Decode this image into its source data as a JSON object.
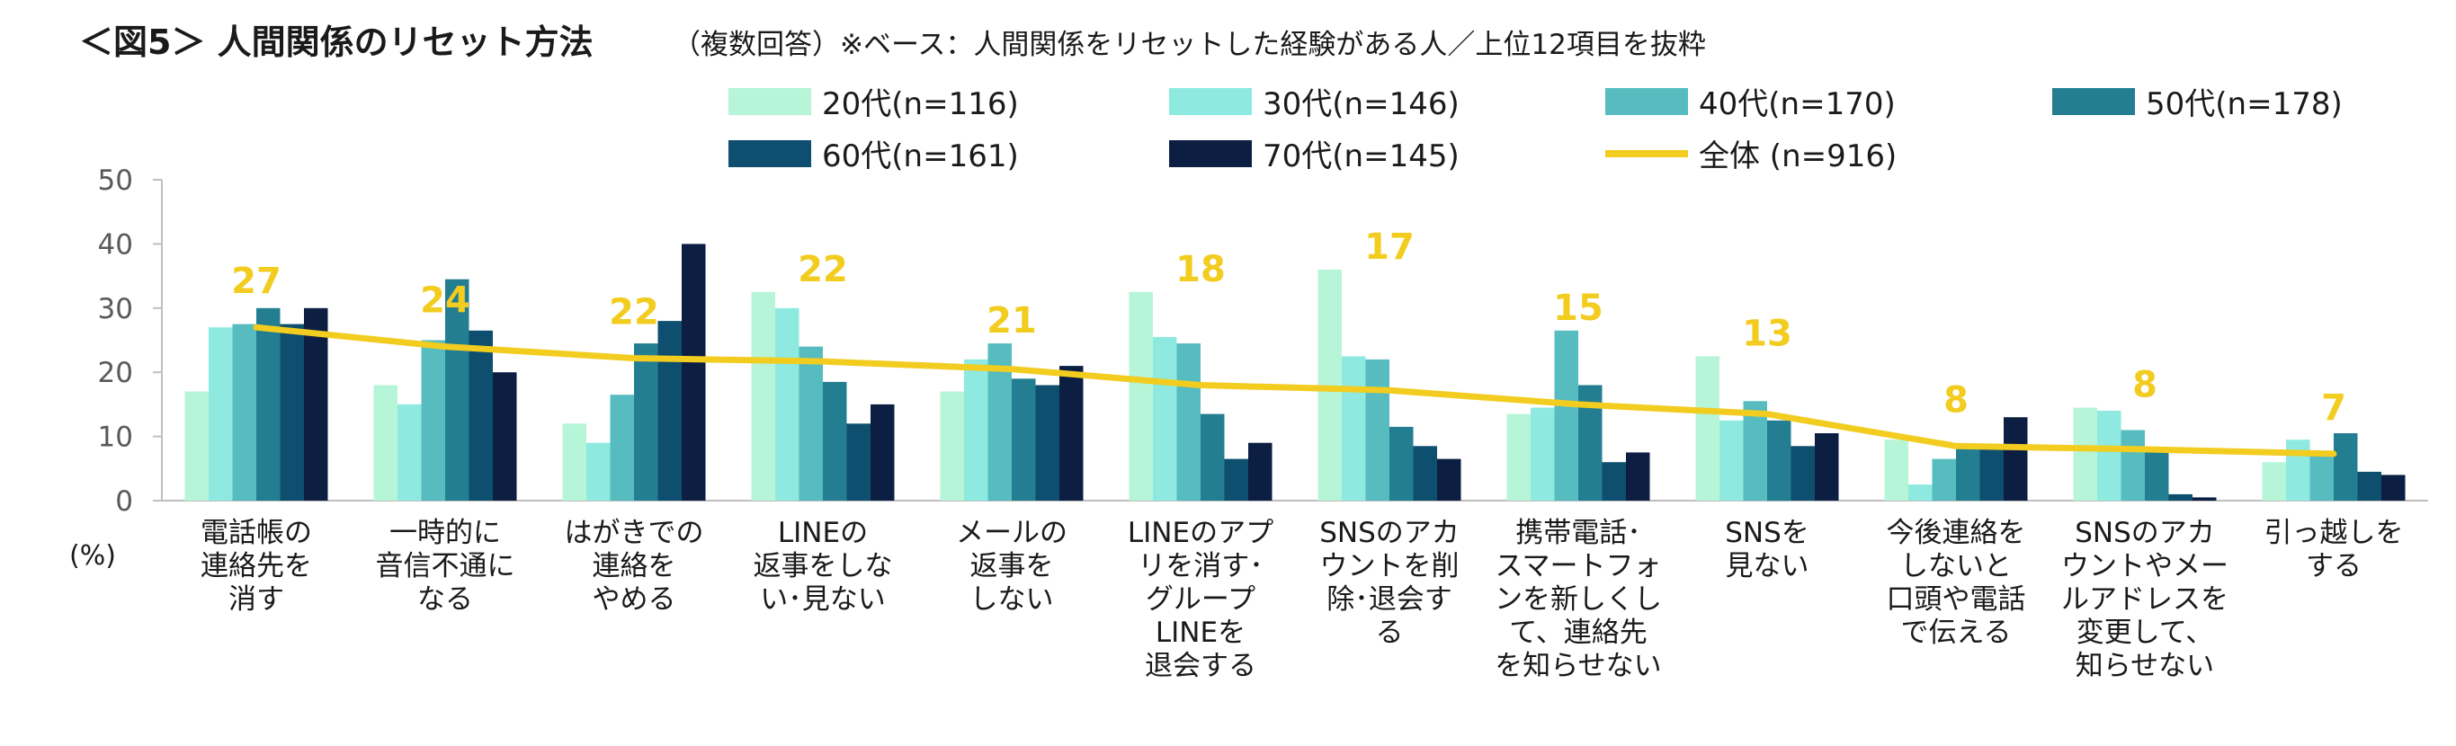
{
  "chart_data": {
    "type": "bar",
    "title": "＜図5＞ 人間関係のリセット方法",
    "subtitle": "（複数回答）※ベース：人間関係をリセットした経験がある人／上位12項目を抜粋",
    "ylabel": "(%)",
    "ylim": [
      0,
      50
    ],
    "yticks": [
      "0",
      "10",
      "20",
      "30",
      "40",
      "50"
    ],
    "grid": false,
    "legend_position": "top",
    "categories": [
      [
        "電話帳の",
        "連絡先を",
        "消す"
      ],
      [
        "一時的に",
        "音信不通に",
        "なる"
      ],
      [
        "はがきでの",
        "連絡を",
        "やめる"
      ],
      [
        "LINEの",
        "返事をしな",
        "い･見ない"
      ],
      [
        "メールの",
        "返事を",
        "しない"
      ],
      [
        "LINEのアプ",
        "リを消す･",
        "グループ",
        "LINEを",
        "退会する"
      ],
      [
        "SNSのアカ",
        "ウントを削",
        "除･退会す",
        "る"
      ],
      [
        "携帯電話･",
        "スマートフォ",
        "ンを新しくし",
        "て、連絡先",
        "を知らせない"
      ],
      [
        "SNSを",
        "見ない"
      ],
      [
        "今後連絡を",
        "しないと",
        "口頭や電話",
        "で伝える"
      ],
      [
        "SNSのアカ",
        "ウントやメー",
        "ルアドレスを",
        "変更して、",
        "知らせない"
      ],
      [
        "引っ越しを",
        "する"
      ]
    ],
    "series": [
      {
        "name": "20代(n=116)",
        "color": "#b6f5d8",
        "values": [
          17,
          18,
          12,
          32.5,
          17,
          32.5,
          36,
          13.5,
          22.5,
          9.5,
          14.5,
          6
        ]
      },
      {
        "name": "30代(n=146)",
        "color": "#8eeae0",
        "values": [
          27,
          15,
          9,
          30,
          22,
          25.5,
          22.5,
          14.5,
          12.5,
          2.5,
          14,
          9.5
        ]
      },
      {
        "name": "40代(n=170)",
        "color": "#56bcbf",
        "values": [
          27.5,
          25,
          16.5,
          24,
          24.5,
          24.5,
          22,
          26.5,
          15.5,
          6.5,
          11,
          7
        ]
      },
      {
        "name": "50代(n=178)",
        "color": "#237e92",
        "values": [
          30,
          34.5,
          24.5,
          18.5,
          19,
          13.5,
          11.5,
          18,
          12.5,
          8.5,
          7.5,
          10.5
        ]
      },
      {
        "name": "60代(n=161)",
        "color": "#0e4e6e",
        "values": [
          27.5,
          26.5,
          28,
          12,
          18,
          6.5,
          8.5,
          6,
          8.5,
          8.5,
          1,
          4.5
        ]
      },
      {
        "name": "70代(n=145)",
        "color": "#0c1f43",
        "values": [
          30,
          20,
          40,
          15,
          21,
          9,
          6.5,
          7.5,
          10.5,
          13,
          0.5,
          4
        ]
      }
    ],
    "total": {
      "name": "全体 (n=916)",
      "color": "#f2cc1f",
      "values": [
        27,
        24,
        22,
        22,
        21,
        18,
        17,
        15,
        13,
        8,
        8,
        7
      ],
      "labels": [
        "27",
        "24",
        "22",
        "22",
        "21",
        "18",
        "17",
        "15",
        "13",
        "8",
        "8",
        "7"
      ],
      "line_values": [
        27,
        24,
        22.2,
        21.7,
        20.5,
        18,
        17.2,
        15,
        13.5,
        8.5,
        8,
        7.3
      ]
    }
  }
}
